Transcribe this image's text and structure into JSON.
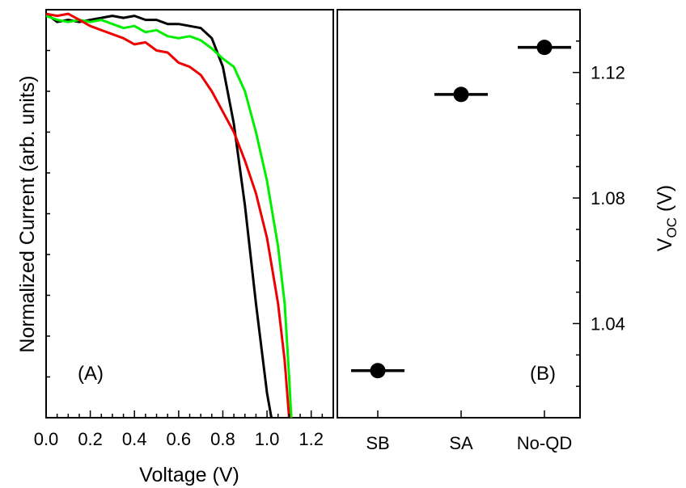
{
  "chart_data": [
    {
      "panel": "(A)",
      "type": "line",
      "xlabel": "Voltage (V)",
      "ylabel": "Normalized Current (arb. units)",
      "xlim": [
        0.0,
        1.3
      ],
      "ylim": [
        0.0,
        1.0
      ],
      "xticks": [
        "0.0",
        "0.2",
        "0.4",
        "0.6",
        "0.8",
        "1.0",
        "1.2"
      ],
      "yticks": [],
      "grid": false,
      "series": [
        {
          "color": "#000000",
          "x": [
            0.0,
            0.05,
            0.1,
            0.15,
            0.2,
            0.25,
            0.3,
            0.35,
            0.4,
            0.45,
            0.5,
            0.55,
            0.6,
            0.65,
            0.7,
            0.75,
            0.8,
            0.85,
            0.9,
            0.95,
            1.0,
            1.02
          ],
          "y": [
            0.99,
            0.97,
            0.975,
            0.97,
            0.975,
            0.98,
            0.985,
            0.98,
            0.985,
            0.975,
            0.975,
            0.965,
            0.965,
            0.96,
            0.955,
            0.93,
            0.86,
            0.72,
            0.52,
            0.28,
            0.06,
            0.0
          ]
        },
        {
          "color": "#00ee00",
          "x": [
            0.0,
            0.05,
            0.1,
            0.15,
            0.2,
            0.25,
            0.3,
            0.35,
            0.4,
            0.45,
            0.5,
            0.55,
            0.6,
            0.65,
            0.7,
            0.75,
            0.8,
            0.85,
            0.9,
            0.95,
            1.0,
            1.05,
            1.08,
            1.1,
            1.11
          ],
          "y": [
            0.985,
            0.975,
            0.97,
            0.975,
            0.97,
            0.975,
            0.965,
            0.955,
            0.96,
            0.945,
            0.95,
            0.935,
            0.93,
            0.935,
            0.925,
            0.905,
            0.88,
            0.86,
            0.8,
            0.7,
            0.58,
            0.42,
            0.28,
            0.1,
            0.0
          ]
        },
        {
          "color": "#ee0000",
          "x": [
            0.0,
            0.05,
            0.1,
            0.15,
            0.2,
            0.25,
            0.3,
            0.35,
            0.4,
            0.45,
            0.5,
            0.55,
            0.6,
            0.65,
            0.7,
            0.75,
            0.8,
            0.85,
            0.9,
            0.95,
            1.0,
            1.05,
            1.08,
            1.1
          ],
          "y": [
            0.99,
            0.985,
            0.99,
            0.975,
            0.96,
            0.95,
            0.94,
            0.93,
            0.915,
            0.92,
            0.9,
            0.895,
            0.87,
            0.86,
            0.84,
            0.8,
            0.75,
            0.7,
            0.63,
            0.55,
            0.44,
            0.28,
            0.14,
            0.0
          ]
        }
      ]
    },
    {
      "panel": "(B)",
      "type": "scatter",
      "categories": [
        "SB",
        "SA",
        "No-QD"
      ],
      "ylabel": "V",
      "ylabel_sub": "OC",
      "ylabel_unit": " (V)",
      "ylim": [
        1.01,
        1.14
      ],
      "yticks": [
        "1.04",
        "1.08",
        "1.12"
      ],
      "grid": false,
      "values": [
        1.025,
        1.113,
        1.128
      ]
    }
  ]
}
